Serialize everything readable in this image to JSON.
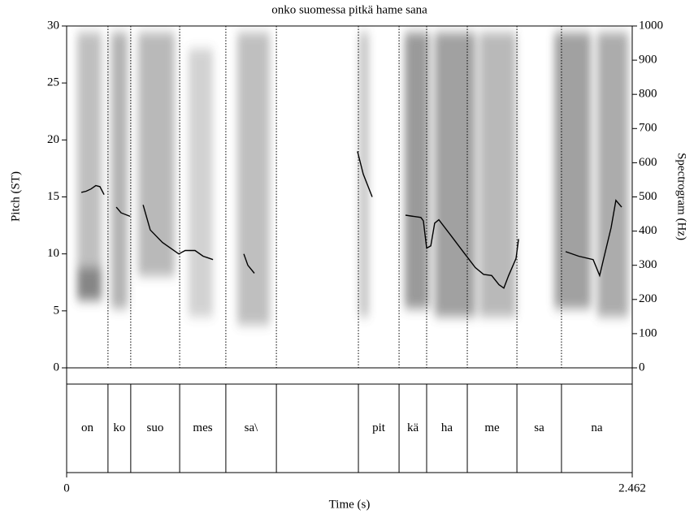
{
  "chart_data": {
    "type": "line",
    "title": "onko suomessa pitkä hame sana",
    "y_label": "Pitch (ST)",
    "y2_label": "Spectrogram (Hz)",
    "x_label": "Time (s)",
    "xlim": [
      0,
      2.462
    ],
    "xticks": [
      0,
      2.462
    ],
    "ylim": [
      0,
      30
    ],
    "yticks": [
      0,
      5,
      10,
      15,
      20,
      25,
      30
    ],
    "y2lim": [
      0,
      1000
    ],
    "y2ticks": [
      0,
      100,
      200,
      300,
      400,
      500,
      600,
      700,
      800,
      900,
      1000
    ],
    "series": [
      {
        "color": "#000000",
        "x": [
          0.064,
          0.085,
          0.106,
          0.127,
          0.145,
          0.163,
          null,
          0.216,
          0.237,
          0.276,
          null,
          0.333,
          0.364,
          0.417,
          0.488,
          0.516,
          0.559,
          0.594,
          0.637,
          null,
          0.771,
          0.789,
          0.817,
          null,
          1.266,
          1.291,
          1.33,
          null,
          1.475,
          1.542,
          1.553,
          1.567,
          1.585,
          1.602,
          1.62,
          1.673,
          1.726,
          1.779,
          1.815,
          1.85,
          1.882,
          1.903,
          1.924,
          1.956,
          1.967,
          null,
          2.172,
          2.229,
          2.292,
          2.32,
          2.345,
          2.37,
          2.391,
          2.416
        ],
        "values": [
          15.4,
          15.5,
          15.7,
          16.0,
          15.9,
          15.2,
          null,
          14.1,
          13.6,
          13.3,
          null,
          14.3,
          12.1,
          11.0,
          10.0,
          10.3,
          10.3,
          9.8,
          9.5,
          null,
          10.0,
          9.0,
          8.3,
          null,
          19.0,
          17.0,
          15.0,
          null,
          13.4,
          13.2,
          12.9,
          10.5,
          10.7,
          12.7,
          13.0,
          11.6,
          10.2,
          8.8,
          8.2,
          8.1,
          7.3,
          7.0,
          8.1,
          9.6,
          11.3,
          null,
          10.2,
          9.8,
          9.5,
          8.1,
          10.2,
          12.3,
          14.7,
          14.1
        ]
      }
    ],
    "tier": {
      "boundaries": [
        0.18,
        0.279,
        0.492,
        0.693,
        0.913,
        1.27,
        1.447,
        1.567,
        1.744,
        1.96,
        2.154
      ],
      "labels": [
        "on",
        "ko",
        "suo",
        "mes",
        "sa\\",
        null,
        "pit",
        "kä",
        "ha",
        "me",
        "sa",
        "na"
      ]
    }
  }
}
